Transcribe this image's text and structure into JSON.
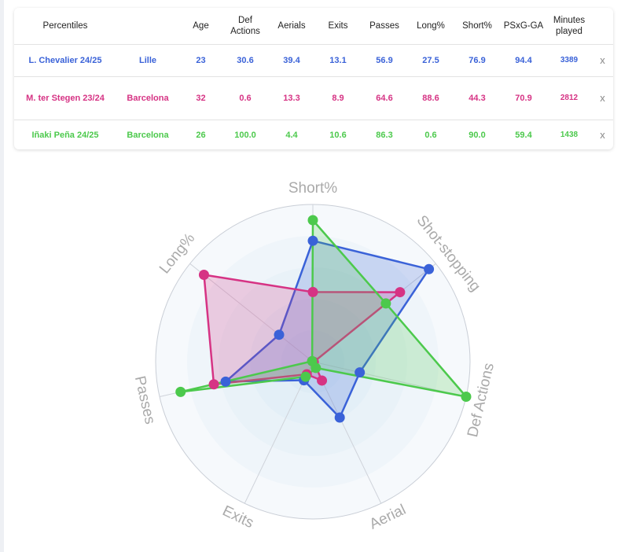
{
  "table": {
    "headers": [
      "Percentiles",
      "",
      "Age",
      "Def Actions",
      "Aerials",
      "Exits",
      "Passes",
      "Long%",
      "Short%",
      "PSxG-GA",
      "Minutes played",
      ""
    ],
    "close_label": "x",
    "rows": [
      {
        "player": "L. Chevalier 24/25",
        "club": "Lille",
        "age": "23",
        "def_actions": "30.6",
        "aerials": "39.4",
        "exits": "13.1",
        "passes": "56.9",
        "long": "27.5",
        "short": "76.9",
        "psxg": "94.4",
        "minutes": "3389",
        "color": "#3a62d8"
      },
      {
        "player": "M. ter Stegen 23/24",
        "club": "Barcelona",
        "age": "32",
        "def_actions": "0.6",
        "aerials": "13.3",
        "exits": "8.9",
        "passes": "64.6",
        "long": "88.6",
        "short": "44.3",
        "psxg": "70.9",
        "minutes": "2812",
        "color": "#d63384"
      },
      {
        "player": "Iñaki Peña 24/25",
        "club": "Barcelona",
        "age": "26",
        "def_actions": "100.0",
        "aerials": "4.4",
        "exits": "10.6",
        "passes": "86.3",
        "long": "0.6",
        "short": "90.0",
        "psxg": "59.4",
        "minutes": "1438",
        "color": "#4cc94c"
      }
    ]
  },
  "chart_data": {
    "type": "radar",
    "axes": [
      "Short%",
      "Shot-stopping",
      "Def Actions",
      "Aerial",
      "Exits",
      "Passes",
      "Long%"
    ],
    "range": [
      0,
      100
    ],
    "series": [
      {
        "name": "L. Chevalier 24/25",
        "color": "#3a62d8",
        "values": [
          76.9,
          94.4,
          30.6,
          39.4,
          13.1,
          56.9,
          27.5
        ]
      },
      {
        "name": "M. ter Stegen 23/24",
        "color": "#d63384",
        "values": [
          44.3,
          70.9,
          0.6,
          13.3,
          8.9,
          64.6,
          88.6
        ]
      },
      {
        "name": "Iñaki Peña 24/25",
        "color": "#4cc94c",
        "values": [
          90.0,
          59.4,
          100.0,
          4.4,
          10.6,
          86.3,
          0.6
        ]
      }
    ]
  }
}
